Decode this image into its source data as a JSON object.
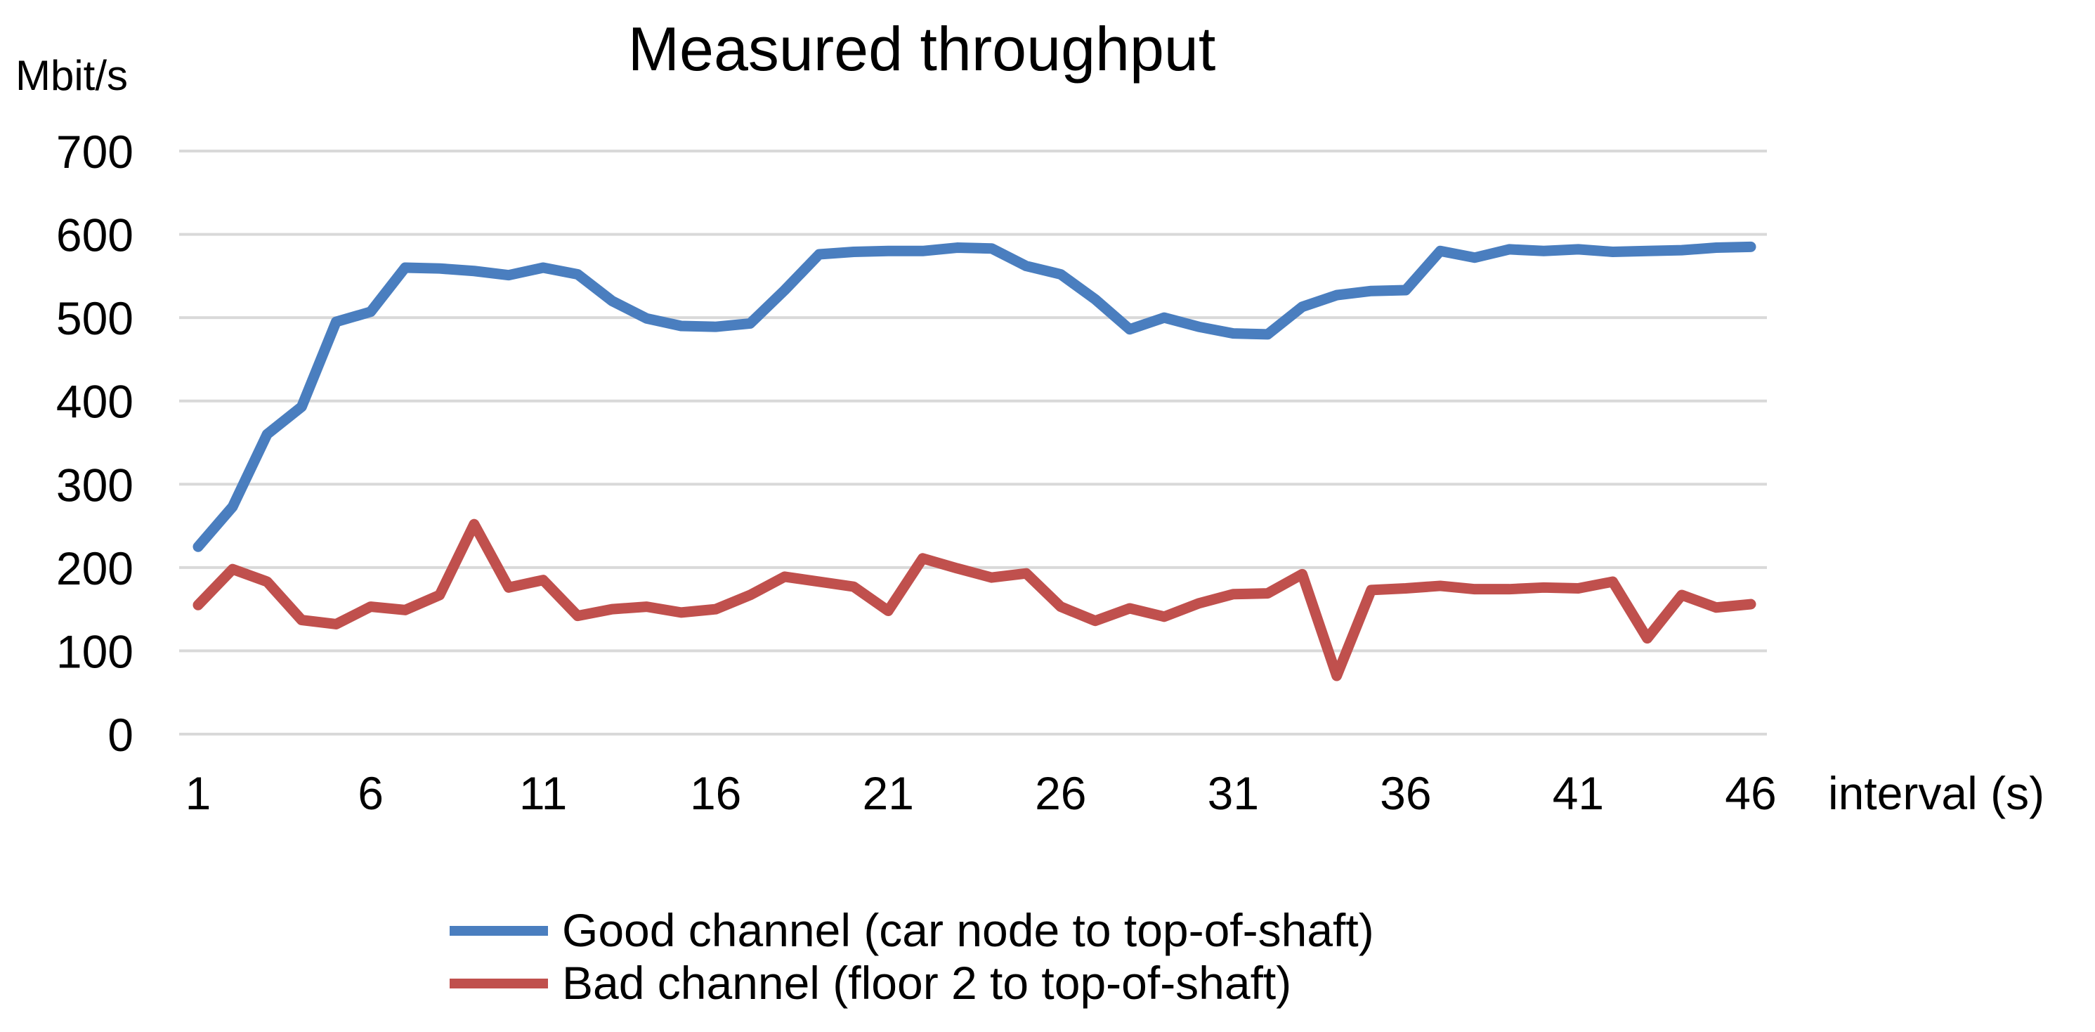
{
  "chart_data": {
    "type": "line",
    "title": "Measured throughput",
    "ylabel": "Mbit/s",
    "xlabel": "interval (s)",
    "ylim": [
      0,
      700
    ],
    "yticks": [
      0,
      100,
      200,
      300,
      400,
      500,
      600,
      700
    ],
    "xticks": [
      1,
      6,
      11,
      16,
      21,
      26,
      31,
      36,
      41,
      46
    ],
    "grid": true,
    "legend_position": "bottom",
    "x": [
      1,
      2,
      3,
      4,
      5,
      6,
      7,
      8,
      9,
      10,
      11,
      12,
      13,
      14,
      15,
      16,
      17,
      18,
      19,
      20,
      21,
      22,
      23,
      24,
      25,
      26,
      27,
      28,
      29,
      30,
      31,
      32,
      33,
      34,
      35,
      36,
      37,
      38,
      39,
      40,
      41,
      42,
      43,
      44,
      45,
      46
    ],
    "series": [
      {
        "name": "Good channel (car node to top-of-shaft)",
        "color": "#4a7ebf",
        "values": [
          225,
          273,
          360,
          393,
          495,
          507,
          560,
          559,
          556,
          551,
          560,
          552,
          520,
          499,
          490,
          489,
          493,
          533,
          576,
          579,
          580,
          580,
          584,
          583,
          562,
          552,
          522,
          486,
          500,
          489,
          481,
          480,
          513,
          527,
          532,
          533,
          580,
          572,
          582,
          580,
          582,
          579,
          580,
          581,
          584,
          585
        ]
      },
      {
        "name": "Bad channel (floor 2 to top-of-shaft)",
        "color": "#c0504d",
        "values": [
          155,
          198,
          183,
          137,
          132,
          153,
          149,
          167,
          252,
          176,
          185,
          142,
          150,
          153,
          146,
          150,
          167,
          189,
          183,
          177,
          148,
          211,
          199,
          188,
          193,
          153,
          136,
          151,
          141,
          157,
          168,
          169,
          192,
          70,
          173,
          175,
          178,
          174,
          174,
          176,
          175,
          183,
          115,
          167,
          152,
          156
        ]
      }
    ]
  }
}
